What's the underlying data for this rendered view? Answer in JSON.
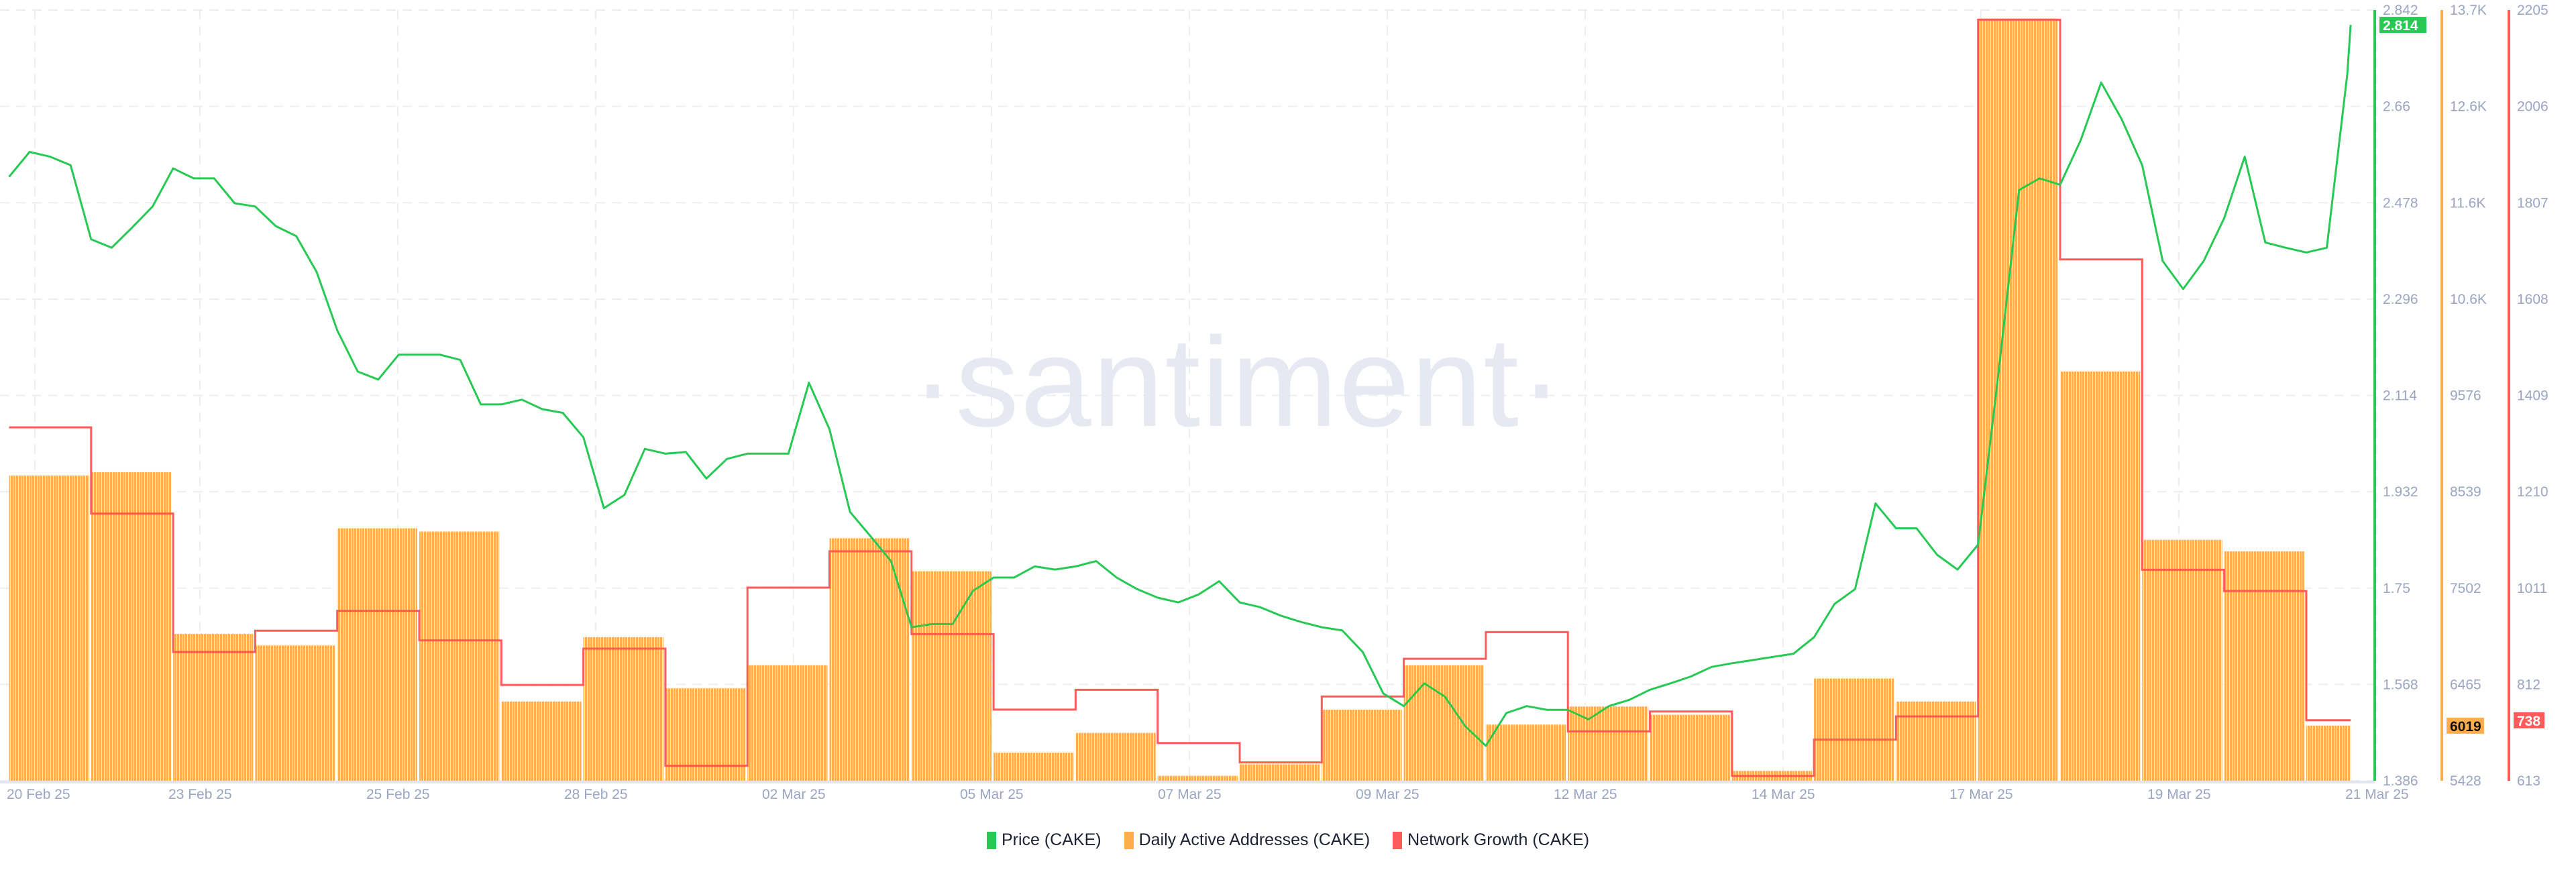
{
  "watermark": "·santiment·",
  "legend": [
    {
      "label": "Price (CAKE)",
      "color": "#26c953"
    },
    {
      "label": "Daily Active Addresses (CAKE)",
      "color": "#ffad4d"
    },
    {
      "label": "Network Growth (CAKE)",
      "color": "#ff5b5b"
    }
  ],
  "chart_data": {
    "type": "line+bar+step",
    "x_tick_labels": [
      "20 Feb 25",
      "23 Feb 25",
      "25 Feb 25",
      "28 Feb 25",
      "02 Mar 25",
      "05 Mar 25",
      "07 Mar 25",
      "09 Mar 25",
      "12 Mar 25",
      "14 Mar 25",
      "17 Mar 25",
      "19 Mar 25",
      "21 Mar 25"
    ],
    "grid": true,
    "legend_placement": "bottom-center",
    "axes": {
      "price": {
        "ticks": [
          "2.842",
          "2.66",
          "2.478",
          "2.296",
          "2.114",
          "1.932",
          "1.75",
          "1.568",
          "1.386"
        ],
        "range": [
          1.386,
          2.842
        ],
        "last_value": "2.814",
        "color": "#26c953"
      },
      "daily_active_addresses": {
        "ticks": [
          "13.7K",
          "12.6K",
          "11.6K",
          "10.6K",
          "9576",
          "8539",
          "7502",
          "6465",
          "5428"
        ],
        "range": [
          5428,
          13700
        ],
        "last_value": "6019",
        "color": "#ffad4d"
      },
      "network_growth": {
        "ticks": [
          "2205",
          "2006",
          "1807",
          "1608",
          "1409",
          "1210",
          "1011",
          "812",
          "613"
        ],
        "range": [
          613,
          2205
        ],
        "last_value": "738",
        "color": "#ff5b5b"
      }
    },
    "series": [
      {
        "name": "Daily Active Addresses (CAKE)",
        "type": "bar",
        "axis": "daily_active_addresses",
        "dates": [
          "2025-02-21",
          "2025-02-22",
          "2025-02-23",
          "2025-02-24",
          "2025-02-25",
          "2025-02-26",
          "2025-02-27",
          "2025-02-28",
          "2025-03-01",
          "2025-03-02",
          "2025-03-03",
          "2025-03-04",
          "2025-03-05",
          "2025-03-06",
          "2025-03-07",
          "2025-03-08",
          "2025-03-09",
          "2025-03-10",
          "2025-03-11",
          "2025-03-12",
          "2025-03-13",
          "2025-03-14",
          "2025-03-15",
          "2025-03-16",
          "2025-03-17",
          "2025-03-18",
          "2025-03-19",
          "2025-03-20",
          "2025-03-21"
        ],
        "values": [
          8704,
          8740,
          7004,
          6880,
          8138,
          8102,
          6278,
          6969,
          6420,
          6668,
          8031,
          7677,
          5729,
          5942,
          5481,
          5605,
          6190,
          6668,
          6030,
          6225,
          6136,
          5534,
          6526,
          6278,
          13610,
          9820,
          8014,
          7890,
          6019
        ]
      },
      {
        "name": "Network Growth (CAKE)",
        "type": "step",
        "axis": "network_growth",
        "dates": [
          "2025-02-21",
          "2025-02-22",
          "2025-02-23",
          "2025-02-24",
          "2025-02-25",
          "2025-02-26",
          "2025-02-27",
          "2025-02-28",
          "2025-03-01",
          "2025-03-02",
          "2025-03-03",
          "2025-03-04",
          "2025-03-05",
          "2025-03-06",
          "2025-03-07",
          "2025-03-08",
          "2025-03-09",
          "2025-03-10",
          "2025-03-11",
          "2025-03-12",
          "2025-03-13",
          "2025-03-14",
          "2025-03-15",
          "2025-03-16",
          "2025-03-17",
          "2025-03-18",
          "2025-03-19",
          "2025-03-20",
          "2025-03-21"
        ],
        "values": [
          1343,
          1165,
          879,
          923,
          964,
          903,
          811,
          886,
          644,
          1012,
          1087,
          916,
          760,
          801,
          691,
          651,
          787,
          865,
          920,
          715,
          756,
          623,
          698,
          746,
          2185,
          1690,
          1049,
          1005,
          738
        ]
      },
      {
        "name": "Price (CAKE)",
        "type": "line",
        "axis": "price",
        "points": [
          [
            "2025-02-21 00:00",
            2.527
          ],
          [
            "2025-02-21 06:00",
            2.574
          ],
          [
            "2025-02-21 12:00",
            2.565
          ],
          [
            "2025-02-21 18:00",
            2.549
          ],
          [
            "2025-02-22 00:00",
            2.409
          ],
          [
            "2025-02-22 06:00",
            2.393
          ],
          [
            "2025-02-22 12:00",
            2.431
          ],
          [
            "2025-02-22 18:00",
            2.471
          ],
          [
            "2025-02-23 00:00",
            2.543
          ],
          [
            "2025-02-23 06:00",
            2.524
          ],
          [
            "2025-02-23 12:00",
            2.524
          ],
          [
            "2025-02-23 18:00",
            2.477
          ],
          [
            "2025-02-24 00:00",
            2.471
          ],
          [
            "2025-02-24 06:00",
            2.434
          ],
          [
            "2025-02-24 12:00",
            2.415
          ],
          [
            "2025-02-24 18:00",
            2.347
          ],
          [
            "2025-02-25 00:00",
            2.237
          ],
          [
            "2025-02-25 06:00",
            2.159
          ],
          [
            "2025-02-25 12:00",
            2.144
          ],
          [
            "2025-02-25 18:00",
            2.191
          ],
          [
            "2025-02-26 00:00",
            2.191
          ],
          [
            "2025-02-26 06:00",
            2.191
          ],
          [
            "2025-02-26 12:00",
            2.181
          ],
          [
            "2025-02-26 18:00",
            2.097
          ],
          [
            "2025-02-27 00:00",
            2.097
          ],
          [
            "2025-02-27 06:00",
            2.106
          ],
          [
            "2025-02-27 12:00",
            2.088
          ],
          [
            "2025-02-27 18:00",
            2.081
          ],
          [
            "2025-02-28 00:00",
            2.035
          ],
          [
            "2025-02-28 06:00",
            1.901
          ],
          [
            "2025-02-28 12:00",
            1.926
          ],
          [
            "2025-02-28 18:00",
            2.013
          ],
          [
            "2025-03-01 00:00",
            2.004
          ],
          [
            "2025-03-01 06:00",
            2.007
          ],
          [
            "2025-03-01 12:00",
            1.957
          ],
          [
            "2025-03-01 18:00",
            1.994
          ],
          [
            "2025-03-02 00:00",
            2.004
          ],
          [
            "2025-03-02 06:00",
            2.004
          ],
          [
            "2025-03-02 12:00",
            2.004
          ],
          [
            "2025-03-02 18:00",
            2.138
          ],
          [
            "2025-03-03 00:00",
            2.05
          ],
          [
            "2025-03-03 06:00",
            1.894
          ],
          [
            "2025-03-03 12:00",
            1.848
          ],
          [
            "2025-03-03 18:00",
            1.801
          ],
          [
            "2025-03-04 00:00",
            1.676
          ],
          [
            "2025-03-04 06:00",
            1.682
          ],
          [
            "2025-03-04 12:00",
            1.682
          ],
          [
            "2025-03-04 18:00",
            1.745
          ],
          [
            "2025-03-05 00:00",
            1.77
          ],
          [
            "2025-03-05 06:00",
            1.77
          ],
          [
            "2025-03-05 12:00",
            1.791
          ],
          [
            "2025-03-05 18:00",
            1.785
          ],
          [
            "2025-03-06 00:00",
            1.791
          ],
          [
            "2025-03-06 06:00",
            1.801
          ],
          [
            "2025-03-06 12:00",
            1.77
          ],
          [
            "2025-03-06 18:00",
            1.748
          ],
          [
            "2025-03-07 00:00",
            1.732
          ],
          [
            "2025-03-07 06:00",
            1.723
          ],
          [
            "2025-03-07 12:00",
            1.738
          ],
          [
            "2025-03-07 18:00",
            1.763
          ],
          [
            "2025-03-08 00:00",
            1.723
          ],
          [
            "2025-03-08 06:00",
            1.714
          ],
          [
            "2025-03-08 12:00",
            1.698
          ],
          [
            "2025-03-08 18:00",
            1.686
          ],
          [
            "2025-03-09 00:00",
            1.676
          ],
          [
            "2025-03-09 06:00",
            1.67
          ],
          [
            "2025-03-09 12:00",
            1.629
          ],
          [
            "2025-03-09 18:00",
            1.551
          ],
          [
            "2025-03-10 00:00",
            1.527
          ],
          [
            "2025-03-10 06:00",
            1.57
          ],
          [
            "2025-03-10 12:00",
            1.545
          ],
          [
            "2025-03-10 18:00",
            1.489
          ],
          [
            "2025-03-11 00:00",
            1.452
          ],
          [
            "2025-03-11 06:00",
            1.514
          ],
          [
            "2025-03-11 12:00",
            1.527
          ],
          [
            "2025-03-11 18:00",
            1.52
          ],
          [
            "2025-03-12 00:00",
            1.52
          ],
          [
            "2025-03-12 06:00",
            1.502
          ],
          [
            "2025-03-12 12:00",
            1.527
          ],
          [
            "2025-03-12 18:00",
            1.539
          ],
          [
            "2025-03-13 00:00",
            1.558
          ],
          [
            "2025-03-13 06:00",
            1.57
          ],
          [
            "2025-03-13 12:00",
            1.583
          ],
          [
            "2025-03-13 18:00",
            1.601
          ],
          [
            "2025-03-14 00:00",
            1.608
          ],
          [
            "2025-03-14 06:00",
            1.614
          ],
          [
            "2025-03-14 12:00",
            1.62
          ],
          [
            "2025-03-14 18:00",
            1.626
          ],
          [
            "2025-03-15 00:00",
            1.657
          ],
          [
            "2025-03-15 06:00",
            1.72
          ],
          [
            "2025-03-15 12:00",
            1.748
          ],
          [
            "2025-03-15 18:00",
            1.91
          ],
          [
            "2025-03-16 00:00",
            1.863
          ],
          [
            "2025-03-16 06:00",
            1.863
          ],
          [
            "2025-03-16 12:00",
            1.813
          ],
          [
            "2025-03-16 18:00",
            1.785
          ],
          [
            "2025-03-17 00:00",
            1.832
          ],
          [
            "2025-03-17 06:00",
            2.159
          ],
          [
            "2025-03-17 12:00",
            2.502
          ],
          [
            "2025-03-17 18:00",
            2.524
          ],
          [
            "2025-03-18 00:00",
            2.512
          ],
          [
            "2025-03-18 06:00",
            2.596
          ],
          [
            "2025-03-18 12:00",
            2.705
          ],
          [
            "2025-03-18 18:00",
            2.636
          ],
          [
            "2025-03-19 00:00",
            2.549
          ],
          [
            "2025-03-19 06:00",
            2.368
          ],
          [
            "2025-03-19 12:00",
            2.315
          ],
          [
            "2025-03-19 18:00",
            2.368
          ],
          [
            "2025-03-20 00:00",
            2.449
          ],
          [
            "2025-03-20 06:00",
            2.565
          ],
          [
            "2025-03-20 12:00",
            2.403
          ],
          [
            "2025-03-20 18:00",
            2.393
          ],
          [
            "2025-03-21 00:00",
            2.384
          ],
          [
            "2025-03-21 06:00",
            2.393
          ],
          [
            "2025-03-21 12:00",
            2.72
          ],
          [
            "2025-03-21 13:00",
            2.814
          ]
        ]
      }
    ]
  }
}
